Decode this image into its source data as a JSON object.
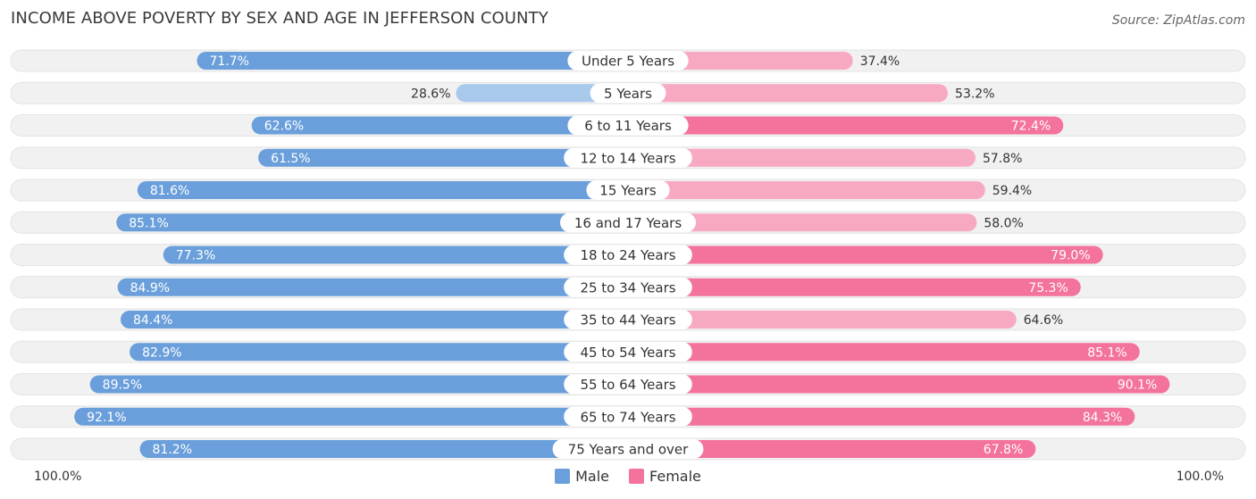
{
  "title": "INCOME ABOVE POVERTY BY SEX AND AGE IN JEFFERSON COUNTY",
  "source": "Source: ZipAtlas.com",
  "axis": {
    "left_label": "100.0%",
    "right_label": "100.0%"
  },
  "legend": {
    "male": "Male",
    "female": "Female"
  },
  "colors": {
    "male_strong": "#6a9fdb",
    "male_light": "#a8c8ec",
    "female_strong": "#f3739c",
    "female_light": "#f7a9c2",
    "track": "#f1f1f1"
  },
  "chart_data": {
    "type": "bar",
    "orientation": "horizontal-diverging",
    "title": "INCOME ABOVE POVERTY BY SEX AND AGE IN JEFFERSON COUNTY",
    "xlim": [
      0,
      100
    ],
    "categories": [
      "Under 5 Years",
      "5 Years",
      "6 to 11 Years",
      "12 to 14 Years",
      "15 Years",
      "16 and 17 Years",
      "18 to 24 Years",
      "25 to 34 Years",
      "35 to 44 Years",
      "45 to 54 Years",
      "55 to 64 Years",
      "65 to 74 Years",
      "75 Years and over"
    ],
    "series": [
      {
        "name": "Male",
        "values": [
          71.7,
          28.6,
          62.6,
          61.5,
          81.6,
          85.1,
          77.3,
          84.9,
          84.4,
          82.9,
          89.5,
          92.1,
          81.2
        ],
        "labels": [
          "71.7%",
          "28.6%",
          "62.6%",
          "61.5%",
          "81.6%",
          "85.1%",
          "77.3%",
          "84.9%",
          "84.4%",
          "82.9%",
          "89.5%",
          "92.1%",
          "81.2%"
        ]
      },
      {
        "name": "Female",
        "values": [
          37.4,
          53.2,
          72.4,
          57.8,
          59.4,
          58.0,
          79.0,
          75.3,
          64.6,
          85.1,
          90.1,
          84.3,
          67.8
        ],
        "labels": [
          "37.4%",
          "53.2%",
          "72.4%",
          "57.8%",
          "59.4%",
          "58.0%",
          "79.0%",
          "75.3%",
          "64.6%",
          "85.1%",
          "90.1%",
          "84.3%",
          "67.8%"
        ]
      }
    ]
  }
}
